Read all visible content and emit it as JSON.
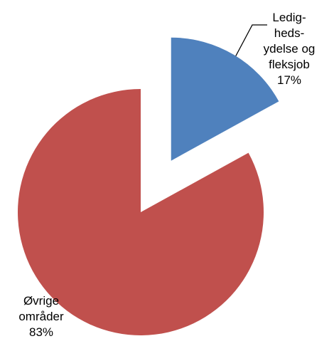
{
  "chart_data": {
    "type": "pie",
    "categories": [
      "Ledig-\nheds-\nydelse og\nfleksjob",
      "Øvrige\nområder"
    ],
    "values": [
      17,
      83
    ],
    "value_labels": [
      "17%",
      "83%"
    ],
    "colors": [
      "#4f81bd",
      "#c0504d"
    ]
  }
}
